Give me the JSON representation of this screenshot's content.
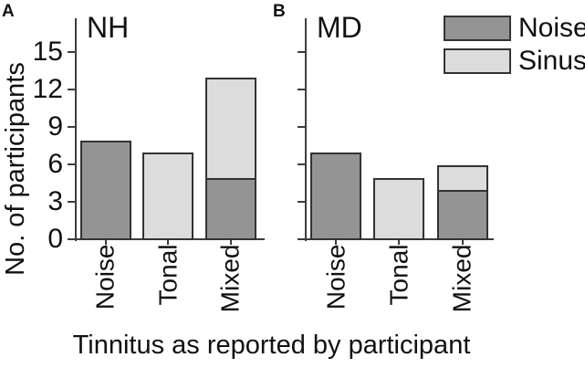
{
  "figure": {
    "ylabel": "No. of participants",
    "xlabel": "Tinnitus as reported by participant",
    "colors": {
      "noise": "#949494",
      "sinus": "#dcdcdc",
      "edge": "#333333",
      "axis": "#3d3d3d",
      "text": "#111111",
      "background": "#ffffff"
    },
    "legend": {
      "position": "top-right",
      "entries": [
        {
          "label": "Noise",
          "series": "noise"
        },
        {
          "label": "Sinus",
          "series": "sinus"
        }
      ]
    }
  },
  "chart_data": [
    {
      "type": "bar",
      "stacked": true,
      "panel_letter": "A",
      "group_label": "NH",
      "categories": [
        "Noise",
        "Tonal",
        "Mixed"
      ],
      "series": [
        {
          "name": "Noise",
          "color_key": "noise",
          "values": [
            8,
            0,
            5
          ]
        },
        {
          "name": "Sinus",
          "color_key": "sinus",
          "values": [
            0,
            7,
            8
          ]
        }
      ],
      "totals": [
        8,
        7,
        13
      ],
      "yticks": [
        0,
        3,
        6,
        9,
        12,
        15
      ],
      "ylim": [
        0,
        17.7
      ],
      "show_ytick_labels": true,
      "grid": false
    },
    {
      "type": "bar",
      "stacked": true,
      "panel_letter": "B",
      "group_label": "MD",
      "categories": [
        "Noise",
        "Tonal",
        "Mixed"
      ],
      "series": [
        {
          "name": "Noise",
          "color_key": "noise",
          "values": [
            7,
            0,
            4
          ]
        },
        {
          "name": "Sinus",
          "color_key": "sinus",
          "values": [
            0,
            5,
            2
          ]
        }
      ],
      "totals": [
        7,
        5,
        6
      ],
      "yticks": [
        0,
        3,
        6,
        9,
        12,
        15
      ],
      "ylim": [
        0,
        17.7
      ],
      "show_ytick_labels": false,
      "grid": false
    }
  ]
}
